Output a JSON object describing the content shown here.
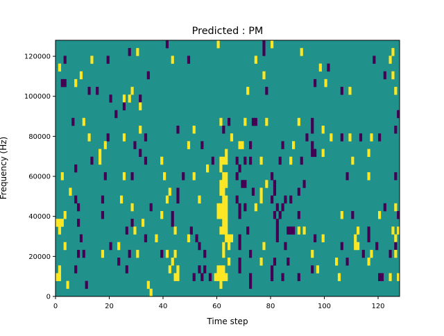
{
  "chart_data": {
    "type": "heatmap",
    "title": "Predicted : PM",
    "xlabel": "Time step",
    "ylabel": "Frequency (Hz)",
    "xlim": [
      0,
      128
    ],
    "ylim": [
      0,
      128000
    ],
    "n_time_steps": 128,
    "n_freq_bins": 33,
    "x_ticks": [
      0,
      20,
      40,
      60,
      80,
      100,
      120
    ],
    "y_ticks": [
      0,
      20000,
      40000,
      60000,
      80000,
      100000,
      120000
    ],
    "x_tick_labels": [
      "0",
      "20",
      "40",
      "60",
      "80",
      "100",
      "120"
    ],
    "y_tick_labels": [
      "0",
      "20000",
      "40000",
      "60000",
      "80000",
      "100000",
      "120000"
    ],
    "grid": false,
    "colors": {
      "background": "#21918c",
      "yellow": "#fde725",
      "purple": "#440154"
    },
    "rows_top_to_bottom": [
      {
        "purple": [
          41,
          77
        ],
        "yellow": [
          60,
          80
        ]
      },
      {
        "purple": [
          27,
          77
        ],
        "yellow": [
          30,
          91,
          125
        ]
      },
      {
        "purple": [
          3,
          19,
          49,
          118
        ],
        "yellow": [
          13,
          43,
          74,
          124
        ]
      },
      {
        "purple": [
          101
        ],
        "yellow": [
          1,
          98
        ]
      },
      {
        "purple": [
          34,
          122
        ],
        "yellow": [
          9,
          77,
          125
        ]
      },
      {
        "purple": [
          2,
          3,
          96
        ],
        "yellow": [
          7,
          100
        ]
      },
      {
        "purple": [
          12,
          15,
          78,
          106
        ],
        "yellow": [
          28,
          71,
          109,
          126
        ]
      },
      {
        "purple": [
          20,
          31
        ],
        "yellow": [
          25,
          27
        ]
      },
      {
        "purple": [
          25
        ],
        "yellow": [
          31
        ]
      },
      {
        "purple": [
          22,
          127
        ],
        "yellow": []
      },
      {
        "purple": [
          6,
          64,
          73,
          74,
          95
        ],
        "yellow": [
          10,
          61,
          70,
          78,
          90
        ]
      },
      {
        "purple": [
          45,
          62,
          95,
          126
        ],
        "yellow": [
          31,
          51,
          99
        ]
      },
      {
        "purple": [
          19,
          33,
          93,
          106,
          113,
          120
        ],
        "yellow": [
          12,
          25,
          65,
          102,
          109,
          117
        ]
      },
      {
        "purple": [
          29,
          54,
          72,
          84,
          95
        ],
        "yellow": [
          18,
          49,
          68,
          69,
          88
        ]
      },
      {
        "purple": [
          31,
          95,
          96
        ],
        "yellow": [
          16,
          63,
          99,
          116
        ]
      },
      {
        "purple": [
          13,
          33,
          58,
          67,
          70,
          72,
          83,
          91
        ],
        "yellow": [
          16,
          39,
          61,
          62,
          63,
          76,
          87,
          110
        ]
      },
      {
        "purple": [
          7,
          68
        ],
        "yellow": [
          56,
          61
        ]
      },
      {
        "purple": [
          18,
          28,
          47,
          67,
          80,
          108,
          126
        ],
        "yellow": [
          2,
          25,
          40,
          51,
          62,
          63,
          116
        ]
      },
      {
        "purple": [
          69,
          70,
          81,
          92
        ],
        "yellow": [
          61,
          62,
          63,
          78
        ]
      },
      {
        "purple": [
          45,
          73,
          81,
          90
        ],
        "yellow": [
          5,
          42,
          61,
          62,
          76
        ]
      },
      {
        "purple": [
          7,
          17,
          45,
          67,
          80,
          85,
          87
        ],
        "yellow": [
          24,
          41,
          53,
          62,
          63,
          76
        ]
      },
      {
        "purple": [
          8,
          35,
          68,
          70,
          82,
          84,
          122
        ],
        "yellow": [
          28,
          60,
          61,
          62,
          63,
          74,
          126
        ]
      },
      {
        "purple": [
          17,
          43,
          68,
          81,
          83,
          90,
          110,
          127
        ],
        "yellow": [
          3,
          39,
          60,
          61,
          62,
          63,
          106,
          120
        ]
      },
      {
        "purple": [
          8,
          28,
          43,
          82
        ],
        "yellow": [
          0,
          1,
          2,
          32,
          62,
          63
        ]
      },
      {
        "purple": [
          26,
          50,
          71,
          82,
          86,
          87,
          88,
          116
        ],
        "yellow": [
          1,
          29,
          44,
          61,
          62,
          63,
          90,
          92,
          112,
          125,
          127
        ]
      },
      {
        "purple": [
          9,
          33,
          52,
          68,
          82,
          96,
          116
        ],
        "yellow": [
          37,
          49,
          63,
          64,
          65,
          99,
          111,
          126
        ]
      },
      {
        "purple": [
          20,
          53,
          68,
          85,
          106,
          119,
          126
        ],
        "yellow": [
          3,
          23,
          62,
          64,
          77,
          111,
          112
        ]
      },
      {
        "purple": [
          8,
          10,
          27,
          39,
          55,
          72,
          114,
          124
        ],
        "yellow": [
          17,
          30,
          41,
          44,
          62,
          95,
          117,
          126
        ]
      },
      {
        "purple": [
          23,
          68,
          81,
          86,
          108
        ],
        "yellow": [
          43,
          64,
          76,
          104,
          116
        ]
      },
      {
        "purple": [
          7,
          26,
          53,
          55,
          68,
          80,
          95
        ],
        "yellow": [
          1,
          42,
          45,
          60,
          61,
          62,
          97
        ]
      },
      {
        "purple": [
          51,
          54,
          57,
          72,
          80,
          84,
          90,
          120,
          121
        ],
        "yellow": [
          0,
          1,
          44,
          45,
          59,
          60,
          61,
          62,
          63,
          105,
          124,
          127
        ]
      },
      {
        "purple": [
          11,
          72
        ],
        "yellow": [
          4,
          34,
          61
        ]
      },
      {
        "purple": [],
        "yellow": [
          35
        ]
      }
    ]
  }
}
